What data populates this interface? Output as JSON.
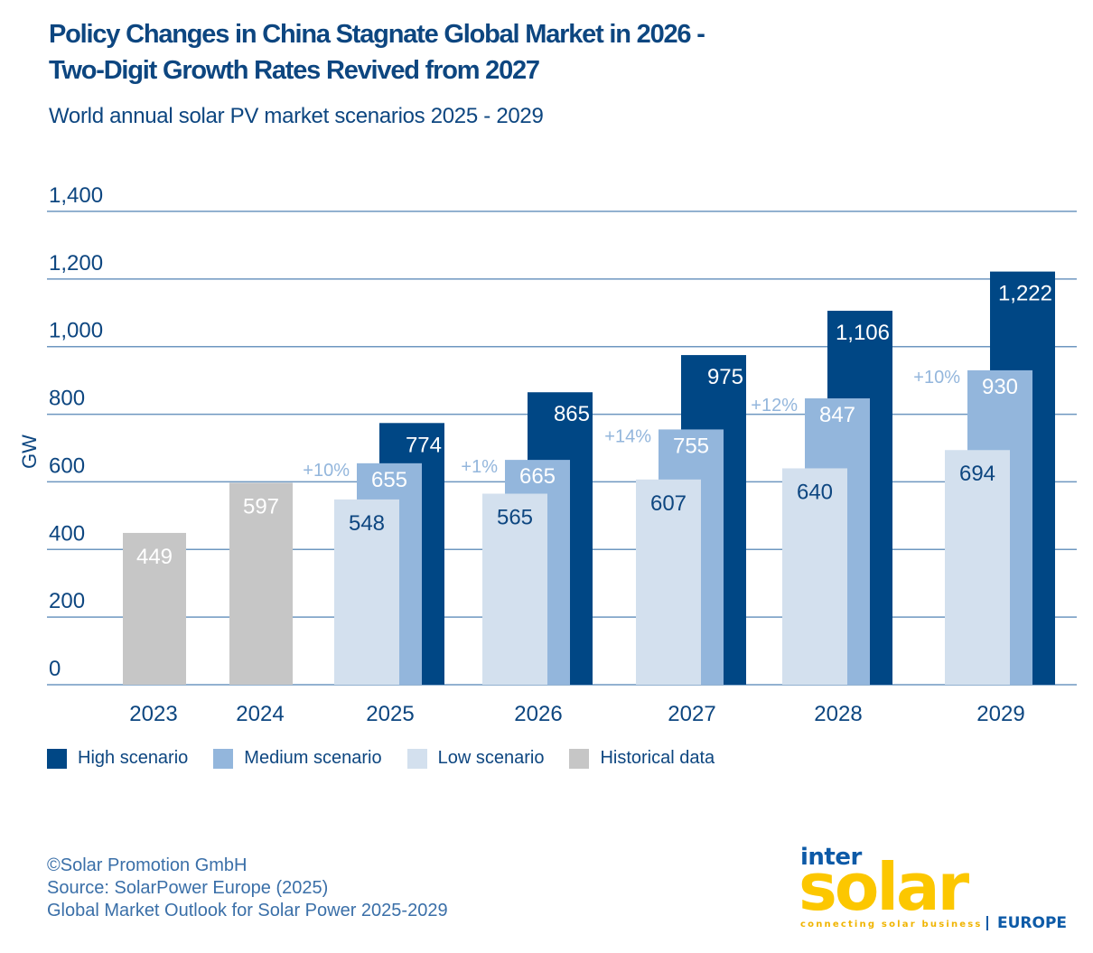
{
  "title_line1": "Policy Changes in China Stagnate Global Market in 2026 -",
  "title_line2": "Two-Digit Growth Rates Revived from 2027",
  "subtitle": "World annual solar PV market scenarios 2025 - 2029",
  "colors": {
    "high": "#004785",
    "medium": "#93b6dc",
    "low": "#d3e0ee",
    "historical": "#c6c6c6",
    "text": "#0d4680",
    "growth": "#93b6dc",
    "grid": "#6e97c0"
  },
  "chart_data": {
    "type": "bar",
    "title": "Policy Changes in China Stagnate Global Market in 2026 - Two-Digit Growth Rates Revived from 2027",
    "subtitle": "World annual solar PV market scenarios 2025 - 2029",
    "xlabel": "",
    "ylabel": "GW",
    "ylim": [
      0,
      1400
    ],
    "yticks": [
      0,
      200,
      400,
      600,
      800,
      1000,
      1200,
      1400
    ],
    "ytick_labels": [
      "0",
      "200",
      "400",
      "600",
      "800",
      "1,000",
      "1,200",
      "1,400"
    ],
    "grid": true,
    "legend_position": "bottom-left",
    "categories": [
      "2023",
      "2024",
      "2025",
      "2026",
      "2027",
      "2028",
      "2029"
    ],
    "series": [
      {
        "name": "Historical data",
        "key": "historical",
        "values": [
          449,
          597,
          null,
          null,
          null,
          null,
          null
        ],
        "labels": [
          "449",
          "597",
          null,
          null,
          null,
          null,
          null
        ]
      },
      {
        "name": "Low scenario",
        "key": "low",
        "values": [
          null,
          null,
          548,
          565,
          607,
          640,
          694
        ],
        "labels": [
          null,
          null,
          "548",
          "565",
          "607",
          "640",
          "694"
        ]
      },
      {
        "name": "Medium scenario",
        "key": "medium",
        "values": [
          null,
          null,
          655,
          665,
          755,
          847,
          930
        ],
        "labels": [
          null,
          null,
          "655",
          "665",
          "755",
          "847",
          "930"
        ]
      },
      {
        "name": "High scenario",
        "key": "high",
        "values": [
          null,
          null,
          774,
          865,
          975,
          1106,
          1222
        ],
        "labels": [
          null,
          null,
          "774",
          "865",
          "975",
          "1,106",
          "1,222"
        ]
      }
    ],
    "annotations": [
      {
        "category": "2025",
        "text": "+10%",
        "series": "medium"
      },
      {
        "category": "2026",
        "text": "+1%",
        "series": "medium"
      },
      {
        "category": "2027",
        "text": "+14%",
        "series": "medium"
      },
      {
        "category": "2028",
        "text": "+12%",
        "series": "medium"
      },
      {
        "category": "2029",
        "text": "+10%",
        "series": "medium"
      }
    ]
  },
  "legend": [
    {
      "label": "High scenario",
      "color": "#004785"
    },
    {
      "label": "Medium scenario",
      "color": "#93b6dc"
    },
    {
      "label": "Low scenario",
      "color": "#d3e0ee"
    },
    {
      "label": "Historical data",
      "color": "#c6c6c6"
    }
  ],
  "footer": {
    "copyright": "©Solar Promotion GmbH",
    "source": "Source: SolarPower Europe (2025)",
    "publication": "Global Market Outlook for Solar Power 2025-2029"
  },
  "logo": {
    "inter": "inter",
    "solar": "solar",
    "tagline": "connecting solar business",
    "region": "EUROPE"
  }
}
